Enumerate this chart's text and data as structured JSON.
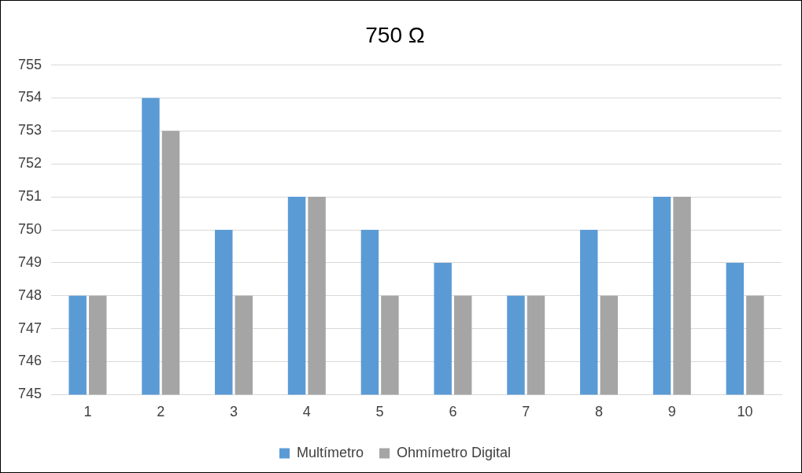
{
  "chart_data": {
    "type": "bar",
    "title": "750 Ω",
    "categories": [
      "1",
      "2",
      "3",
      "4",
      "5",
      "6",
      "7",
      "8",
      "9",
      "10"
    ],
    "series": [
      {
        "name": "Multímetro",
        "color": "#5b9bd5",
        "values": [
          748,
          754,
          750,
          751,
          750,
          749,
          748,
          750,
          751,
          749
        ]
      },
      {
        "name": "Ohmímetro Digital",
        "color": "#a5a5a5",
        "values": [
          748,
          753,
          748,
          751,
          748,
          748,
          748,
          748,
          751,
          748
        ]
      }
    ],
    "ylim": [
      745,
      755
    ],
    "yticks": [
      745,
      746,
      747,
      748,
      749,
      750,
      751,
      752,
      753,
      754,
      755
    ],
    "grid": "y",
    "legend": "bottom"
  }
}
